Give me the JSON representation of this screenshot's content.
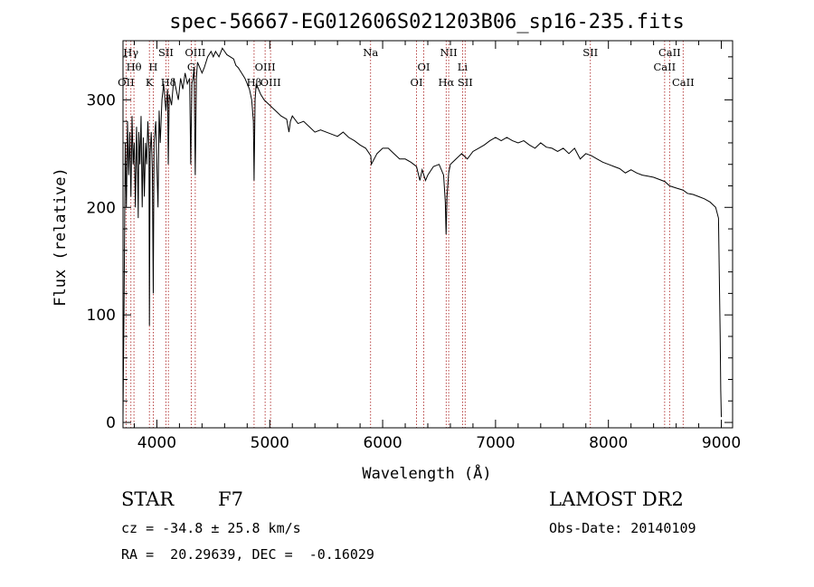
{
  "chart_data": {
    "type": "line",
    "title": "spec-56667-EG012606S021203B06_sp16-235.fits",
    "xlabel": "Wavelength (Å)",
    "ylabel": "Flux (relative)",
    "xlim": [
      3700,
      9100
    ],
    "ylim": [
      -5,
      355
    ],
    "xticks": [
      4000,
      5000,
      6000,
      7000,
      8000,
      9000
    ],
    "yticks": [
      0,
      100,
      200,
      300
    ],
    "grid": false,
    "series": [
      {
        "color": "#000000",
        "x": [
          3700,
          3710,
          3720,
          3730,
          3740,
          3750,
          3760,
          3770,
          3780,
          3790,
          3800,
          3810,
          3820,
          3830,
          3835,
          3840,
          3850,
          3860,
          3870,
          3880,
          3889,
          3900,
          3910,
          3920,
          3930,
          3934,
          3940,
          3950,
          3960,
          3968,
          3975,
          3990,
          4000,
          4010,
          4020,
          4030,
          4045,
          4060,
          4080,
          4095,
          4101,
          4110,
          4130,
          4150,
          4170,
          4190,
          4210,
          4230,
          4250,
          4270,
          4290,
          4300,
          4310,
          4320,
          4330,
          4340,
          4350,
          4360,
          4380,
          4400,
          4420,
          4450,
          4480,
          4500,
          4520,
          4550,
          4580,
          4600,
          4620,
          4650,
          4680,
          4700,
          4720,
          4750,
          4780,
          4800,
          4820,
          4840,
          4855,
          4861,
          4870,
          4880,
          4900,
          4920,
          4950,
          5000,
          5050,
          5100,
          5150,
          5170,
          5183,
          5200,
          5250,
          5300,
          5350,
          5400,
          5450,
          5500,
          5550,
          5600,
          5650,
          5700,
          5750,
          5800,
          5850,
          5895,
          5900,
          5950,
          6000,
          6050,
          6100,
          6150,
          6200,
          6250,
          6300,
          6330,
          6350,
          6380,
          6400,
          6450,
          6500,
          6540,
          6555,
          6562,
          6570,
          6585,
          6600,
          6650,
          6700,
          6750,
          6800,
          6850,
          6900,
          6950,
          7000,
          7050,
          7100,
          7150,
          7200,
          7250,
          7300,
          7350,
          7400,
          7450,
          7500,
          7550,
          7600,
          7650,
          7700,
          7750,
          7800,
          7850,
          7900,
          7950,
          8000,
          8050,
          8100,
          8150,
          8200,
          8250,
          8300,
          8350,
          8400,
          8450,
          8500,
          8542,
          8600,
          8662,
          8700,
          8750,
          8800,
          8850,
          8900,
          8950,
          8975,
          8990,
          8995,
          9000
        ],
        "values": [
          5,
          120,
          260,
          200,
          280,
          230,
          270,
          210,
          285,
          240,
          260,
          200,
          275,
          230,
          190,
          270,
          240,
          285,
          200,
          265,
          210,
          260,
          240,
          280,
          255,
          90,
          250,
          270,
          235,
          120,
          260,
          280,
          240,
          200,
          290,
          260,
          300,
          315,
          290,
          310,
          240,
          305,
          295,
          320,
          310,
          300,
          320,
          310,
          325,
          315,
          320,
          240,
          315,
          320,
          330,
          230,
          320,
          335,
          330,
          325,
          330,
          340,
          345,
          340,
          345,
          340,
          348,
          345,
          342,
          340,
          338,
          332,
          330,
          325,
          320,
          315,
          310,
          300,
          280,
          225,
          300,
          315,
          310,
          305,
          300,
          295,
          290,
          285,
          282,
          270,
          280,
          285,
          278,
          280,
          275,
          270,
          272,
          270,
          268,
          266,
          270,
          265,
          262,
          258,
          255,
          248,
          240,
          250,
          255,
          255,
          250,
          245,
          245,
          242,
          238,
          225,
          235,
          225,
          230,
          238,
          240,
          230,
          205,
          175,
          210,
          232,
          240,
          245,
          250,
          245,
          252,
          255,
          258,
          262,
          265,
          262,
          265,
          262,
          260,
          262,
          258,
          255,
          260,
          256,
          255,
          252,
          255,
          250,
          255,
          245,
          250,
          248,
          245,
          242,
          240,
          238,
          236,
          232,
          235,
          232,
          230,
          229,
          228,
          226,
          224,
          220,
          218,
          216,
          213,
          212,
          210,
          208,
          205,
          200,
          190,
          80,
          30,
          5
        ]
      }
    ],
    "line_markers": [
      {
        "label": "Hγ",
        "x": 3770,
        "row": 0
      },
      {
        "label": "SII",
        "x": 4080,
        "row": 0
      },
      {
        "label": "OIII",
        "x": 4340,
        "row": 0
      },
      {
        "label": "Na",
        "x": 5893,
        "row": 0
      },
      {
        "label": "NII",
        "x": 6585,
        "row": 0
      },
      {
        "label": "SII",
        "x": 7840,
        "row": 0
      },
      {
        "label": "CaII",
        "x": 8542,
        "row": 0
      },
      {
        "label": "Hθ",
        "x": 3797,
        "row": 1
      },
      {
        "label": "H",
        "x": 3968,
        "row": 1
      },
      {
        "label": "G",
        "x": 4305,
        "row": 1
      },
      {
        "label": "OIII",
        "x": 4959,
        "row": 1
      },
      {
        "label": "OI",
        "x": 6364,
        "row": 1
      },
      {
        "label": "Li",
        "x": 6708,
        "row": 1
      },
      {
        "label": "CaII",
        "x": 8498,
        "row": 1
      },
      {
        "label": "OII",
        "x": 3727,
        "row": 2
      },
      {
        "label": "K",
        "x": 3934,
        "row": 2
      },
      {
        "label": "Hδ",
        "x": 4102,
        "row": 2
      },
      {
        "label": "Hβ",
        "x": 4861,
        "row": 2
      },
      {
        "label": "OIII",
        "x": 5007,
        "row": 2
      },
      {
        "label": "OI",
        "x": 6300,
        "row": 2
      },
      {
        "label": "Hα",
        "x": 6563,
        "row": 2
      },
      {
        "label": "SII",
        "x": 6731,
        "row": 2
      },
      {
        "label": "CaII",
        "x": 8662,
        "row": 2
      }
    ]
  },
  "info": {
    "object_type": "STAR",
    "subclass": "F7",
    "survey": "LAMOST DR2",
    "cz": "cz = -34.8 ± 25.8 km/s",
    "obs_date": "Obs-Date: 20140109",
    "coords": "RA =  20.29639, DEC =  -0.16029"
  }
}
